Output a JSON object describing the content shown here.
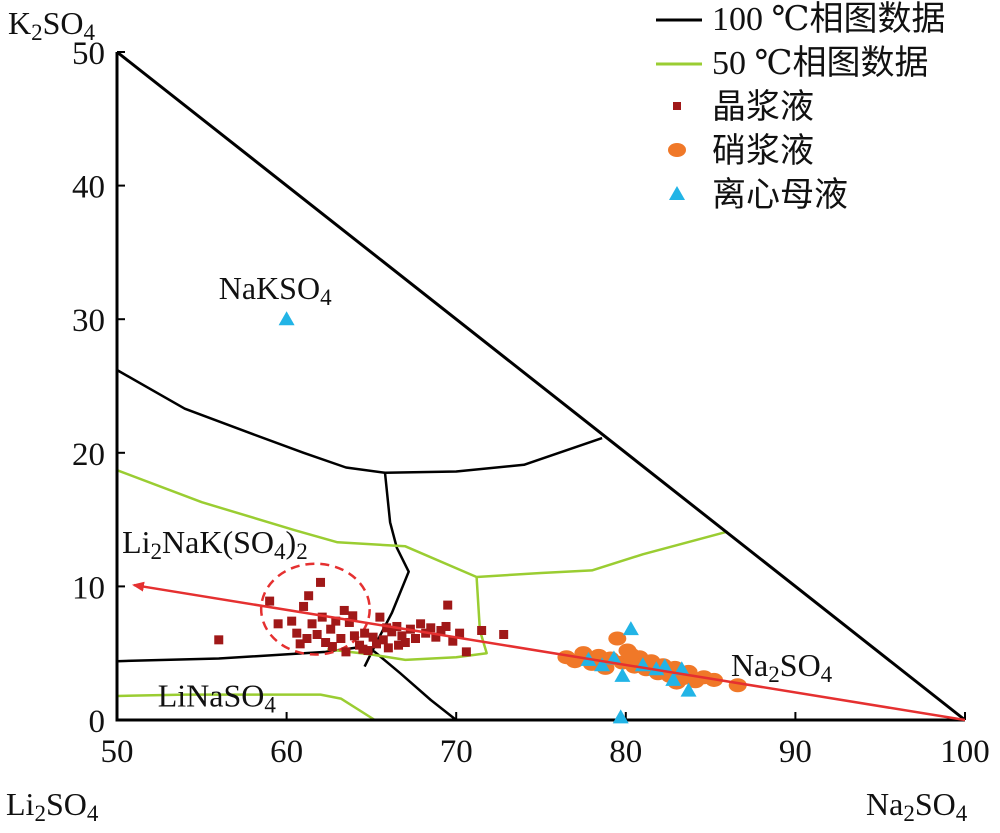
{
  "chart_data": {
    "type": "scatter",
    "corner_labels": {
      "top": {
        "main": "K",
        "sub": "2",
        "mid": "SO",
        "sub2": "4"
      },
      "bottom_left": {
        "main": "Li",
        "sub": "2",
        "mid": "SO",
        "sub2": "4"
      },
      "bottom_right": {
        "main": "Na",
        "sub": "2",
        "mid": "SO",
        "sub2": "4"
      }
    },
    "xlim": [
      50,
      100
    ],
    "ylim": [
      0,
      50
    ],
    "x_ticks": [
      "50",
      "60",
      "70",
      "80",
      "90",
      "100"
    ],
    "y_ticks": [
      "0",
      "10",
      "20",
      "30",
      "40",
      "50"
    ],
    "region_labels": [
      {
        "id": "naksо4",
        "text": "NaKSO",
        "sub": "4",
        "sub_after": "",
        "x": 56,
        "y": 31.5
      },
      {
        "id": "li2nak",
        "text": "Li",
        "sub": "2",
        "mid": "NaK(SO",
        "sub2": "4",
        "end": ")",
        "sub3": "2",
        "x": 50.3,
        "y": 12.5
      },
      {
        "id": "linaso4",
        "text": "LiNaSO",
        "sub": "4",
        "x": 52.4,
        "y": 1.0
      },
      {
        "id": "na2so4",
        "text": "Na",
        "sub": "2",
        "mid": "SO",
        "sub2": "4",
        "x": 86.2,
        "y": 3.3
      }
    ],
    "legend": [
      {
        "label": "100 ℃相图数据",
        "marker": "line",
        "color": "#000000"
      },
      {
        "label": "50 ℃相图数据",
        "marker": "line",
        "color": "#9ACD32"
      },
      {
        "label": "晶浆液",
        "marker": "square",
        "color": "#A01818"
      },
      {
        "label": "硝浆液",
        "marker": "circle",
        "color": "#F07828"
      },
      {
        "label": "离心母液",
        "marker": "triangle",
        "color": "#22B4E6"
      }
    ],
    "colors": {
      "boundary": "#000000",
      "phase100": "#000000",
      "phase50": "#9ACD32",
      "trend": "#E53030",
      "ellipse": "#E53030"
    },
    "phase_100": [
      [
        [
          50,
          26.2
        ],
        [
          54,
          23.3
        ],
        [
          58,
          21.4
        ],
        [
          61,
          20
        ],
        [
          63.5,
          18.9
        ],
        [
          65.8,
          18.5
        ],
        [
          70,
          18.6
        ],
        [
          74,
          19.1
        ],
        [
          78.6,
          21.1
        ]
      ],
      [
        [
          65.8,
          18.5
        ],
        [
          66.1,
          14.8
        ],
        [
          66.5,
          12.9
        ],
        [
          67.2,
          11.1
        ],
        [
          66.2,
          8.0
        ],
        [
          65.3,
          5.8
        ],
        [
          64.6,
          4.0
        ]
      ],
      [
        [
          50,
          4.4
        ],
        [
          56,
          4.6
        ],
        [
          62.3,
          5.1
        ],
        [
          64.6,
          5.5
        ],
        [
          65.2,
          5.1
        ],
        [
          66.7,
          3.5
        ],
        [
          68.5,
          1.5
        ],
        [
          70,
          0
        ]
      ]
    ],
    "phase_50": [
      [
        [
          50,
          18.7
        ],
        [
          55,
          16.3
        ],
        [
          60.5,
          14.2
        ],
        [
          63,
          13.3
        ],
        [
          67,
          13.0
        ],
        [
          71.2,
          10.7
        ],
        [
          75,
          11.0
        ],
        [
          78,
          11.2
        ],
        [
          81,
          12.4
        ],
        [
          86,
          14.1
        ]
      ],
      [
        [
          50,
          1.8
        ],
        [
          54,
          1.9
        ],
        [
          58,
          1.9
        ],
        [
          62,
          1.9
        ],
        [
          63.2,
          1.6
        ],
        [
          65.2,
          0
        ]
      ],
      [
        [
          62.4,
          5.3
        ],
        [
          65,
          4.9
        ],
        [
          67,
          4.5
        ],
        [
          70,
          4.7
        ],
        [
          71.8,
          5.0
        ],
        [
          71.4,
          6.7
        ],
        [
          71.2,
          10.7
        ]
      ]
    ],
    "trend_line": {
      "x": [
        51,
        100
      ],
      "y": [
        10.1,
        0
      ]
    },
    "ellipse": {
      "cx": 61.7,
      "cy": 8.3,
      "rx": 3.2,
      "ry": 3.4
    },
    "series": [
      {
        "name": "晶浆液",
        "marker": "square",
        "points": [
          [
            56,
            6
          ],
          [
            59,
            8.9
          ],
          [
            59.5,
            7.2
          ],
          [
            60.3,
            7.4
          ],
          [
            60.6,
            6.5
          ],
          [
            61,
            8.5
          ],
          [
            61.3,
            9.3
          ],
          [
            61.5,
            7.2
          ],
          [
            62,
            10.3
          ],
          [
            61.8,
            6.4
          ],
          [
            62.3,
            5.8
          ],
          [
            62.6,
            6.8
          ],
          [
            62.9,
            7.4
          ],
          [
            63.2,
            6.1
          ],
          [
            63.5,
            5.1
          ],
          [
            63.7,
            7.3
          ],
          [
            64,
            6.3
          ],
          [
            64.3,
            5.6
          ],
          [
            64.6,
            6.5
          ],
          [
            64.8,
            5.2
          ],
          [
            65.1,
            6.2
          ],
          [
            65.3,
            5.7
          ],
          [
            65.5,
            7.7
          ],
          [
            65.7,
            6.0
          ],
          [
            66,
            5.4
          ],
          [
            66.2,
            6.6
          ],
          [
            66.5,
            7.0
          ],
          [
            66.8,
            6.3
          ],
          [
            67,
            5.8
          ],
          [
            67.3,
            6.8
          ],
          [
            67.6,
            6.1
          ],
          [
            67.9,
            7.2
          ],
          [
            68.2,
            6.5
          ],
          [
            68.5,
            6.9
          ],
          [
            68.8,
            6.2
          ],
          [
            69.1,
            6.7
          ],
          [
            69.4,
            7.0
          ],
          [
            69.5,
            8.6
          ],
          [
            69.8,
            5.9
          ],
          [
            70.2,
            6.5
          ],
          [
            70.6,
            5.1
          ],
          [
            71.5,
            6.7
          ],
          [
            72.8,
            6.4
          ],
          [
            60.8,
            5.7
          ],
          [
            61.2,
            6.1
          ],
          [
            62.7,
            5.5
          ],
          [
            63.9,
            7.8
          ],
          [
            64.5,
            5.3
          ],
          [
            66.6,
            5.6
          ],
          [
            65.9,
            6.9
          ],
          [
            63.4,
            8.2
          ],
          [
            62.1,
            7.7
          ]
        ]
      },
      {
        "name": "硝浆液",
        "marker": "circle",
        "points": [
          [
            76.5,
            4.7
          ],
          [
            77,
            4.4
          ],
          [
            77.5,
            5.0
          ],
          [
            78,
            4.2
          ],
          [
            78.4,
            4.8
          ],
          [
            78.8,
            3.9
          ],
          [
            79.1,
            4.6
          ],
          [
            79.5,
            6.1
          ],
          [
            79.8,
            4.3
          ],
          [
            80.1,
            5.2
          ],
          [
            80.5,
            4.0
          ],
          [
            80.8,
            4.7
          ],
          [
            81.2,
            3.8
          ],
          [
            81.5,
            4.4
          ],
          [
            81.9,
            3.5
          ],
          [
            82.2,
            4.1
          ],
          [
            82.6,
            3.3
          ],
          [
            82.9,
            3.9
          ],
          [
            83.3,
            3.1
          ],
          [
            83.7,
            3.6
          ],
          [
            84.1,
            2.9
          ],
          [
            84.6,
            3.2
          ],
          [
            85.2,
            3.0
          ],
          [
            86.6,
            2.6
          ],
          [
            80.3,
            4.9
          ],
          [
            81.6,
            3.9
          ],
          [
            83.0,
            2.8
          ]
        ]
      },
      {
        "name": "离心母液",
        "marker": "triangle",
        "points": [
          [
            60,
            30
          ],
          [
            77.8,
            4.5
          ],
          [
            78.6,
            4.1
          ],
          [
            79.3,
            4.6
          ],
          [
            79.8,
            3.3
          ],
          [
            80.3,
            6.8
          ],
          [
            81,
            4.1
          ],
          [
            81.8,
            3.8
          ],
          [
            82.3,
            4.0
          ],
          [
            82.8,
            3.0
          ],
          [
            83.3,
            3.8
          ],
          [
            83.7,
            2.2
          ],
          [
            79.7,
            0.2
          ]
        ]
      }
    ]
  }
}
